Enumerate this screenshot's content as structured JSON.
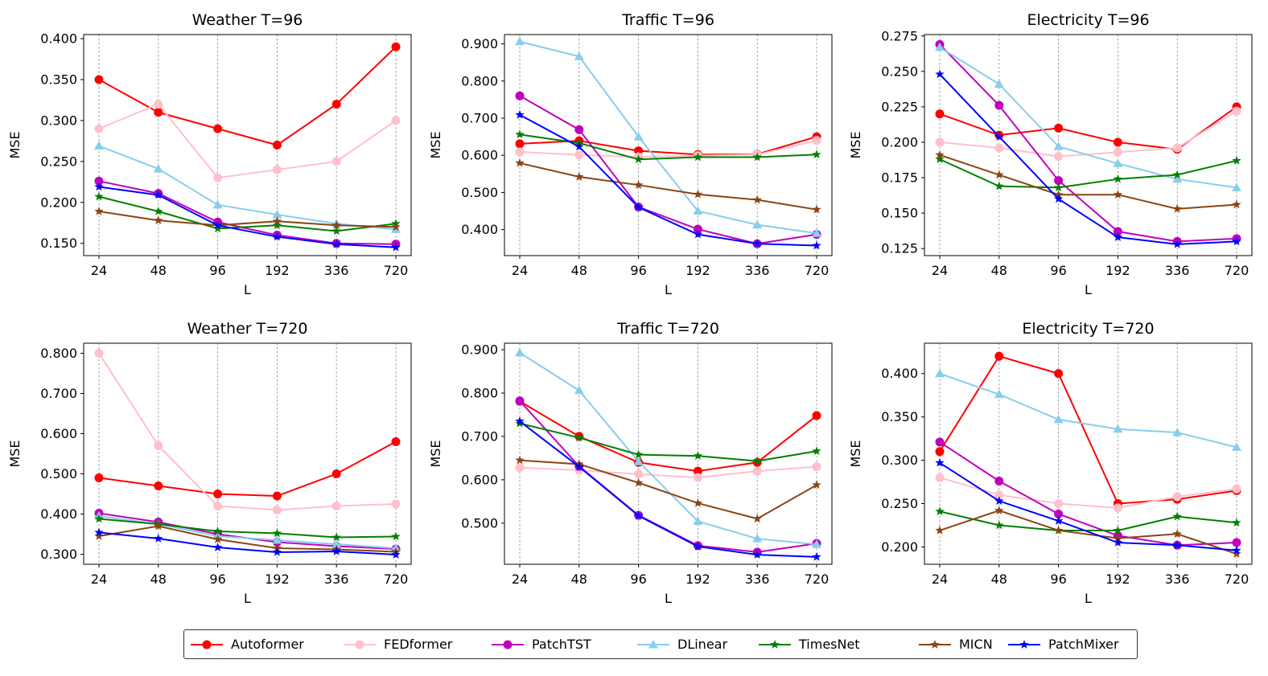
{
  "x_labels": [
    "24",
    "48",
    "96",
    "192",
    "336",
    "720"
  ],
  "series_styles": [
    {
      "name": "Autoformer",
      "color": "#ff0000",
      "marker": "circle"
    },
    {
      "name": "FEDformer",
      "color": "#ffc0cb",
      "marker": "circle"
    },
    {
      "name": "PatchTST",
      "color": "#bf00bf",
      "marker": "circle"
    },
    {
      "name": "DLinear",
      "color": "#87ceeb",
      "marker": "triangle"
    },
    {
      "name": "TimesNet",
      "color": "#008000",
      "marker": "star"
    },
    {
      "name": "MICN",
      "color": "#8b4513",
      "marker": "star"
    },
    {
      "name": "PatchMixer",
      "color": "#0000ff",
      "marker": "star"
    }
  ],
  "legend": {
    "placement": "bottom-center"
  },
  "chart_data": [
    {
      "type": "line",
      "title": "Weather T=96",
      "xlabel": "L",
      "ylabel": "MSE",
      "categories": [
        "24",
        "48",
        "96",
        "192",
        "336",
        "720"
      ],
      "ylim": [
        0.135,
        0.405
      ],
      "yticks": [
        "0.150",
        "0.200",
        "0.250",
        "0.300",
        "0.350",
        "0.400"
      ],
      "grid": "vertical dashed",
      "series": [
        {
          "name": "Autoformer",
          "values": [
            0.35,
            0.31,
            0.29,
            0.27,
            0.32,
            0.39
          ]
        },
        {
          "name": "FEDformer",
          "values": [
            0.29,
            0.32,
            0.23,
            0.24,
            0.25,
            0.3
          ]
        },
        {
          "name": "PatchTST",
          "values": [
            0.226,
            0.211,
            0.176,
            0.16,
            0.15,
            0.149
          ]
        },
        {
          "name": "DLinear",
          "values": [
            0.269,
            0.241,
            0.197,
            0.185,
            0.174,
            0.167
          ]
        },
        {
          "name": "TimesNet",
          "values": [
            0.207,
            0.189,
            0.168,
            0.172,
            0.165,
            0.174
          ]
        },
        {
          "name": "MICN",
          "values": [
            0.189,
            0.178,
            0.172,
            0.177,
            0.172,
            0.17
          ]
        },
        {
          "name": "PatchMixer",
          "values": [
            0.219,
            0.209,
            0.172,
            0.158,
            0.149,
            0.145
          ]
        }
      ]
    },
    {
      "type": "line",
      "title": "Traffic T=96",
      "xlabel": "L",
      "ylabel": "MSE",
      "categories": [
        "24",
        "48",
        "96",
        "192",
        "336",
        "720"
      ],
      "ylim": [
        0.33,
        0.925
      ],
      "yticks": [
        "0.400",
        "0.500",
        "0.600",
        "0.700",
        "0.800",
        "0.900"
      ],
      "grid": "vertical dashed",
      "series": [
        {
          "name": "Autoformer",
          "values": [
            0.631,
            0.639,
            0.612,
            0.602,
            0.603,
            0.65
          ]
        },
        {
          "name": "FEDformer",
          "values": [
            0.609,
            0.601,
            0.596,
            0.599,
            0.602,
            0.64
          ]
        },
        {
          "name": "PatchTST",
          "values": [
            0.76,
            0.669,
            0.461,
            0.401,
            0.362,
            0.387
          ]
        },
        {
          "name": "DLinear",
          "values": [
            0.906,
            0.866,
            0.65,
            0.45,
            0.413,
            0.39
          ]
        },
        {
          "name": "TimesNet",
          "values": [
            0.656,
            0.633,
            0.589,
            0.595,
            0.595,
            0.602
          ]
        },
        {
          "name": "MICN",
          "values": [
            0.579,
            0.542,
            0.52,
            0.495,
            0.48,
            0.454
          ]
        },
        {
          "name": "PatchMixer",
          "values": [
            0.709,
            0.623,
            0.46,
            0.387,
            0.362,
            0.357
          ]
        }
      ]
    },
    {
      "type": "line",
      "title": "Electricity T=96",
      "xlabel": "L",
      "ylabel": "MSE",
      "categories": [
        "24",
        "48",
        "96",
        "192",
        "336",
        "720"
      ],
      "ylim": [
        0.12,
        0.276
      ],
      "yticks": [
        "0.125",
        "0.150",
        "0.175",
        "0.200",
        "0.225",
        "0.250",
        "0.275"
      ],
      "grid": "vertical dashed",
      "series": [
        {
          "name": "Autoformer",
          "values": [
            0.22,
            0.205,
            0.21,
            0.2,
            0.195,
            0.225
          ]
        },
        {
          "name": "FEDformer",
          "values": [
            0.2,
            0.196,
            0.19,
            0.193,
            0.196,
            0.222
          ]
        },
        {
          "name": "PatchTST",
          "values": [
            0.269,
            0.226,
            0.173,
            0.137,
            0.13,
            0.132
          ]
        },
        {
          "name": "DLinear",
          "values": [
            0.267,
            0.241,
            0.197,
            0.185,
            0.174,
            0.168
          ]
        },
        {
          "name": "TimesNet",
          "values": [
            0.188,
            0.169,
            0.168,
            0.174,
            0.177,
            0.187
          ]
        },
        {
          "name": "MICN",
          "values": [
            0.191,
            0.177,
            0.163,
            0.163,
            0.153,
            0.156
          ]
        },
        {
          "name": "PatchMixer",
          "values": [
            0.248,
            0.204,
            0.16,
            0.133,
            0.128,
            0.13
          ]
        }
      ]
    },
    {
      "type": "line",
      "title": "Weather T=720",
      "xlabel": "L",
      "ylabel": "MSE",
      "categories": [
        "24",
        "48",
        "96",
        "192",
        "336",
        "720"
      ],
      "ylim": [
        0.275,
        0.825
      ],
      "yticks": [
        "0.300",
        "0.400",
        "0.500",
        "0.600",
        "0.700",
        "0.800"
      ],
      "grid": "vertical dashed",
      "series": [
        {
          "name": "Autoformer",
          "values": [
            0.49,
            0.47,
            0.45,
            0.445,
            0.5,
            0.58
          ]
        },
        {
          "name": "FEDformer",
          "values": [
            0.8,
            0.57,
            0.42,
            0.41,
            0.42,
            0.425
          ]
        },
        {
          "name": "PatchTST",
          "values": [
            0.402,
            0.38,
            0.35,
            0.33,
            0.32,
            0.313
          ]
        },
        {
          "name": "DLinear",
          "values": [
            0.395,
            0.375,
            0.345,
            0.335,
            0.325,
            0.315
          ]
        },
        {
          "name": "TimesNet",
          "values": [
            0.388,
            0.375,
            0.357,
            0.352,
            0.342,
            0.344
          ]
        },
        {
          "name": "MICN",
          "values": [
            0.345,
            0.37,
            0.337,
            0.315,
            0.312,
            0.306
          ]
        },
        {
          "name": "PatchMixer",
          "values": [
            0.354,
            0.339,
            0.317,
            0.305,
            0.307,
            0.299
          ]
        }
      ]
    },
    {
      "type": "line",
      "title": "Traffic T=720",
      "xlabel": "L",
      "ylabel": "MSE",
      "categories": [
        "24",
        "48",
        "96",
        "192",
        "336",
        "720"
      ],
      "ylim": [
        0.405,
        0.915
      ],
      "yticks": [
        "0.500",
        "0.600",
        "0.700",
        "0.800",
        "0.900"
      ],
      "grid": "vertical dashed",
      "series": [
        {
          "name": "Autoformer",
          "values": [
            0.781,
            0.7,
            0.64,
            0.62,
            0.64,
            0.748
          ]
        },
        {
          "name": "FEDformer",
          "values": [
            0.628,
            0.622,
            0.613,
            0.605,
            0.62,
            0.63
          ]
        },
        {
          "name": "PatchTST",
          "values": [
            0.782,
            0.631,
            0.518,
            0.448,
            0.433,
            0.453
          ]
        },
        {
          "name": "DLinear",
          "values": [
            0.893,
            0.806,
            0.642,
            0.504,
            0.464,
            0.451
          ]
        },
        {
          "name": "TimesNet",
          "values": [
            0.73,
            0.697,
            0.658,
            0.655,
            0.643,
            0.666
          ]
        },
        {
          "name": "MICN",
          "values": [
            0.645,
            0.636,
            0.593,
            0.546,
            0.51,
            0.588
          ]
        },
        {
          "name": "PatchMixer",
          "values": [
            0.735,
            0.63,
            0.517,
            0.446,
            0.427,
            0.422
          ]
        }
      ]
    },
    {
      "type": "line",
      "title": "Electricity T=720",
      "xlabel": "L",
      "ylabel": "MSE",
      "categories": [
        "24",
        "48",
        "96",
        "192",
        "336",
        "720"
      ],
      "ylim": [
        0.18,
        0.435
      ],
      "yticks": [
        "0.200",
        "0.250",
        "0.300",
        "0.350",
        "0.400"
      ],
      "grid": "vertical dashed",
      "series": [
        {
          "name": "Autoformer",
          "values": [
            0.31,
            0.42,
            0.4,
            0.25,
            0.255,
            0.265
          ]
        },
        {
          "name": "FEDformer",
          "values": [
            0.28,
            0.26,
            0.25,
            0.245,
            0.258,
            0.267
          ]
        },
        {
          "name": "PatchTST",
          "values": [
            0.321,
            0.276,
            0.238,
            0.213,
            0.202,
            0.205
          ]
        },
        {
          "name": "DLinear",
          "values": [
            0.4,
            0.376,
            0.347,
            0.336,
            0.332,
            0.315
          ]
        },
        {
          "name": "TimesNet",
          "values": [
            0.241,
            0.225,
            0.219,
            0.219,
            0.235,
            0.228
          ]
        },
        {
          "name": "MICN",
          "values": [
            0.219,
            0.242,
            0.219,
            0.21,
            0.215,
            0.192
          ]
        },
        {
          "name": "PatchMixer",
          "values": [
            0.297,
            0.253,
            0.23,
            0.205,
            0.202,
            0.196
          ]
        }
      ]
    }
  ]
}
